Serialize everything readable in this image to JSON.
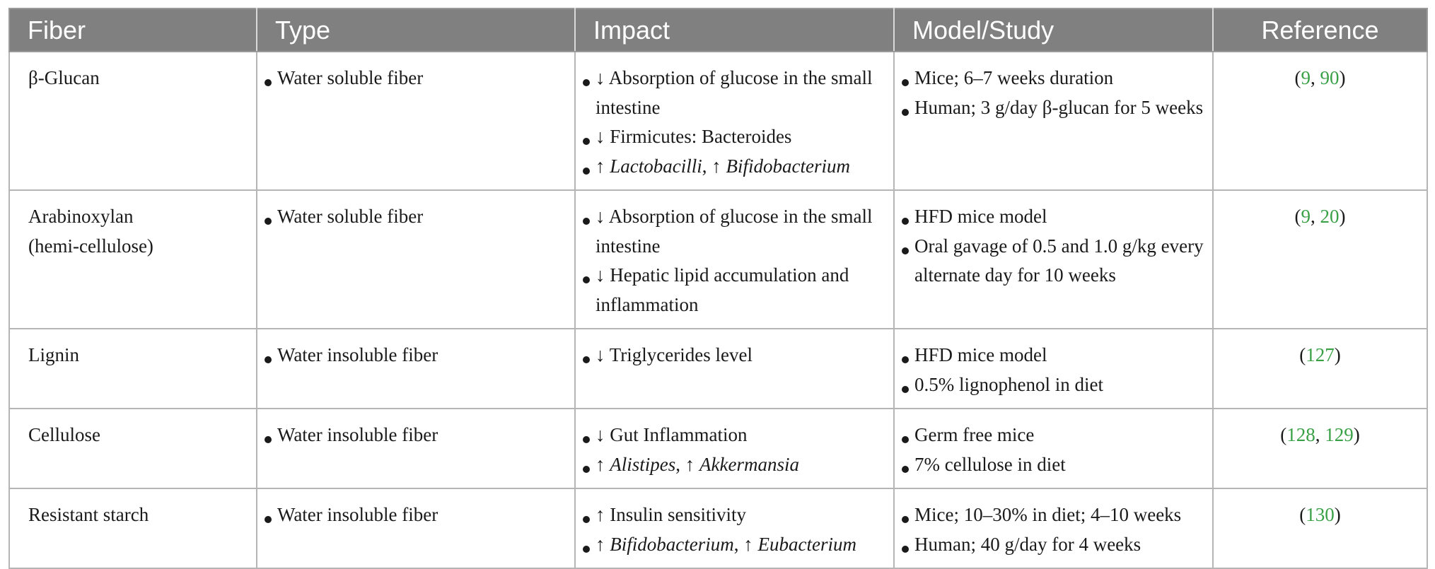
{
  "table": {
    "headers": [
      "Fiber",
      "Type",
      "Impact",
      "Model/Study",
      "Reference"
    ],
    "colors": {
      "header_bg": "#808080",
      "header_text": "#ffffff",
      "citation": "#3aa046",
      "border": "#b5b5b5"
    },
    "rows": [
      {
        "fiber_lines": [
          "β-Glucan"
        ],
        "type": [
          "Water soluble fiber"
        ],
        "impact": [
          {
            "parts": [
              "↓ Absorption of glucose in the small intestine"
            ]
          },
          {
            "parts": [
              "↓ Firmicutes: Bacteroides"
            ]
          },
          {
            "parts": [
              "↑ ",
              "Lactobacilli",
              ", ↑ ",
              "Bifidobacterium"
            ]
          }
        ],
        "model": [
          "Mice; 6–7 weeks duration",
          "Human; 3 g/day β-glucan for 5 weeks"
        ],
        "ref": {
          "open": "(",
          "cites": [
            "9",
            "90"
          ],
          "sep": ", ",
          "close": ")"
        }
      },
      {
        "fiber_lines": [
          "Arabinoxylan",
          "(hemi-cellulose)"
        ],
        "type": [
          "Water soluble fiber"
        ],
        "impact": [
          {
            "parts": [
              "↓ Absorption of glucose in the small intestine"
            ]
          },
          {
            "parts": [
              "↓ Hepatic lipid accumulation and inflammation"
            ]
          }
        ],
        "model": [
          "HFD mice model",
          "Oral gavage of 0.5 and 1.0 g/kg every alternate day for 10 weeks"
        ],
        "ref": {
          "open": "(",
          "cites": [
            "9",
            "20"
          ],
          "sep": ", ",
          "close": ")"
        }
      },
      {
        "fiber_lines": [
          "Lignin"
        ],
        "type": [
          "Water insoluble fiber"
        ],
        "impact": [
          {
            "parts": [
              "↓ Triglycerides level"
            ]
          }
        ],
        "model": [
          "HFD mice model",
          "0.5% lignophenol in diet"
        ],
        "ref": {
          "open": "(",
          "cites": [
            "127"
          ],
          "sep": "",
          "close": ")"
        }
      },
      {
        "fiber_lines": [
          "Cellulose"
        ],
        "type": [
          "Water insoluble fiber"
        ],
        "impact": [
          {
            "parts": [
              "↓ Gut Inflammation"
            ]
          },
          {
            "parts": [
              "↑ ",
              "Alistipes",
              ", ↑ ",
              "Akkermansia"
            ]
          }
        ],
        "model": [
          "Germ free mice",
          "7% cellulose in diet"
        ],
        "ref": {
          "open": "(",
          "cites": [
            "128",
            "129"
          ],
          "sep": ", ",
          "close": ")"
        }
      },
      {
        "fiber_lines": [
          "Resistant starch"
        ],
        "type": [
          "Water insoluble fiber"
        ],
        "impact": [
          {
            "parts": [
              "↑ Insulin sensitivity"
            ]
          },
          {
            "parts": [
              "↑ ",
              "Bifidobacterium",
              ", ↑ ",
              "Eubacterium"
            ]
          }
        ],
        "model": [
          "Mice; 10–30% in diet; 4–10 weeks",
          "Human; 40 g/day for 4 weeks"
        ],
        "ref": {
          "open": "(",
          "cites": [
            "130"
          ],
          "sep": "",
          "close": ")"
        }
      }
    ]
  }
}
